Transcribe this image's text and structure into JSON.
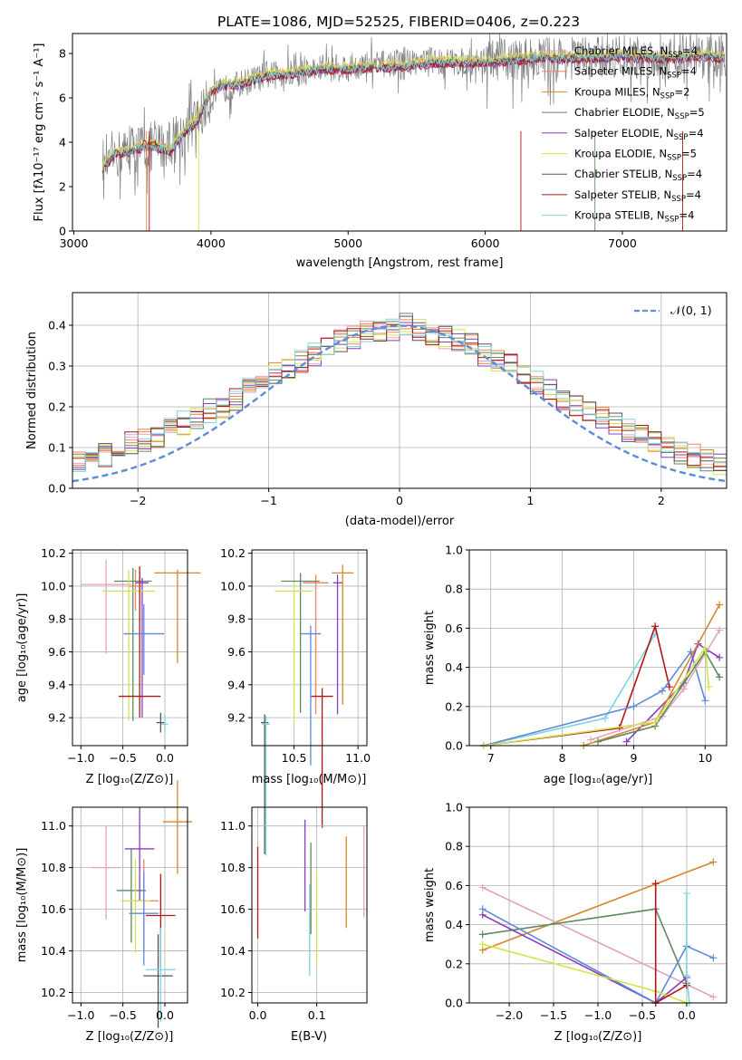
{
  "figure": {
    "title": "PLATE=1086, MJD=52525, FIBERID=0406, z=0.223"
  },
  "models": [
    {
      "key": "chabrier_miles",
      "label": "Chabrier MILES, N",
      "sup": "=4",
      "color": "#e5a3ba"
    },
    {
      "key": "salpeter_miles",
      "label": "Salpeter MILES, N",
      "sup": "=4",
      "color": "#f0825f"
    },
    {
      "key": "kroupa_miles",
      "label": "Kroupa MILES, N",
      "sup": "=2",
      "color": "#d6862c"
    },
    {
      "key": "chabrier_elodie",
      "label": "Chabrier ELODIE, N",
      "sup": "=5",
      "color": "#5f8a5f"
    },
    {
      "key": "salpeter_elodie",
      "label": "Salpeter ELODIE, N",
      "sup": "=4",
      "color": "#8a3cbf"
    },
    {
      "key": "kroupa_elodie",
      "label": "Kroupa ELODIE, N",
      "sup": "=5",
      "color": "#d3e34a"
    },
    {
      "key": "chabrier_stelib",
      "label": "Chabrier STELIB, N",
      "sup": "=4",
      "color": "#555555"
    },
    {
      "key": "salpeter_stelib",
      "label": "Salpeter STELIB, N",
      "sup": "=4",
      "color": "#b31515"
    },
    {
      "key": "kroupa_stelib",
      "label": "Kroupa STELIB, N",
      "sup": "=4",
      "color": "#7fd3df"
    }
  ],
  "legend_sub": "SSP",
  "panels": {
    "spectrum": {
      "ylabel": "Flux [fλ10⁻¹⁷ erg cm⁻² s⁻¹ A⁻¹]",
      "xlabel": "wavelength [Angstrom, rest frame]",
      "xticks": [
        "3000",
        "4000",
        "5000",
        "6000",
        "7000"
      ],
      "yticks": [
        "0",
        "2",
        "4",
        "6",
        "8"
      ]
    },
    "residuals": {
      "ylabel": "Normed distribution",
      "xlabel": "(data-model)/error",
      "legend": "𝒩(0, 1)",
      "xticks": [
        "−2",
        "−1",
        "0",
        "1",
        "2"
      ],
      "yticks": [
        "0.0",
        "0.1",
        "0.2",
        "0.3",
        "0.4"
      ]
    },
    "age_z": {
      "ylabel": "age  [log₁₀(age/yr)]",
      "xlabel": "Z [log₁₀(Z/Z⊙)]",
      "xticks": [
        "−1.0",
        "−0.5",
        "0.0"
      ],
      "yticks": [
        "9.2",
        "9.4",
        "9.6",
        "9.8",
        "10.0",
        "10.2"
      ]
    },
    "age_mass": {
      "xlabel": "mass [log₁₀(M/M⊙)]",
      "xticks": [
        "10.5",
        "11.0"
      ],
      "yticks": [
        "9.2",
        "9.4",
        "9.6",
        "9.8",
        "10.0",
        "10.2"
      ]
    },
    "mw_age": {
      "ylabel": "mass weight",
      "xlabel": "age  [log₁₀(age/yr)]",
      "xticks": [
        "7",
        "8",
        "9",
        "10"
      ],
      "yticks": [
        "0.0",
        "0.2",
        "0.4",
        "0.6",
        "0.8",
        "1.0"
      ]
    },
    "mass_z": {
      "ylabel": "mass [log₁₀(M/M⊙)]",
      "xlabel": "Z [log₁₀(Z/Z⊙)]",
      "xticks": [
        "−1.0",
        "−0.5",
        "0.0"
      ],
      "yticks": [
        "10.2",
        "10.4",
        "10.6",
        "10.8",
        "11.0"
      ]
    },
    "mass_ebv": {
      "xlabel": "E(B-V)",
      "xticks": [
        "0.0",
        "0.1"
      ],
      "yticks": [
        "10.2",
        "10.4",
        "10.6",
        "10.8",
        "11.0"
      ]
    },
    "mw_z": {
      "ylabel": "mass weight",
      "xlabel": "Z [log₁₀(Z/Z⊙)]",
      "xticks": [
        "−2.0",
        "−1.5",
        "−1.0",
        "−0.5",
        "0.0"
      ],
      "yticks": [
        "0.0",
        "0.2",
        "0.4",
        "0.6",
        "0.8",
        "1.0"
      ]
    }
  },
  "chart_data": [
    {
      "type": "line",
      "title": "PLATE=1086, MJD=52525, FIBERID=0406, z=0.223",
      "xlabel": "wavelength [Angstrom, rest frame]",
      "ylabel": "Flux [fλ10⁻¹⁷ erg cm⁻² s⁻¹ A⁻¹]",
      "xlim": [
        2990,
        7760
      ],
      "ylim": [
        0,
        8.9
      ],
      "series": [
        {
          "name": "data",
          "color": "#808080",
          "x": [
            3210,
            3300,
            3400,
            3500,
            3600,
            3700,
            3800,
            3900,
            4000,
            4100,
            4200,
            4400,
            4600,
            4800,
            5000,
            5200,
            5400,
            5600,
            5800,
            6000,
            6200,
            6400,
            6600,
            6800,
            7000,
            7200,
            7400,
            7600,
            7750
          ],
          "y": [
            2.8,
            3.4,
            3.6,
            3.8,
            3.8,
            4.0,
            4.4,
            5.0,
            6.0,
            6.4,
            6.6,
            7.0,
            7.1,
            7.3,
            7.4,
            7.5,
            7.6,
            7.7,
            7.6,
            7.7,
            7.7,
            7.8,
            7.8,
            7.8,
            7.9,
            7.8,
            7.8,
            7.9,
            7.8
          ]
        },
        {
          "name": "model",
          "color": "#7fd3df",
          "x": [
            3210,
            3300,
            3400,
            3500,
            3600,
            3700,
            3800,
            3900,
            4000,
            4100,
            4200,
            4400,
            4600,
            4800,
            5000,
            5200,
            5400,
            5600,
            5800,
            6000,
            6200,
            6400,
            6600,
            6800,
            7000,
            7200,
            7400,
            7600,
            7750
          ],
          "y": [
            2.9,
            3.5,
            3.6,
            3.8,
            3.8,
            3.6,
            4.4,
            5.0,
            6.3,
            6.6,
            6.6,
            7.0,
            7.1,
            7.3,
            7.3,
            7.4,
            7.4,
            7.6,
            7.6,
            7.6,
            7.7,
            7.8,
            7.8,
            7.8,
            7.9,
            7.8,
            7.8,
            7.9,
            7.8
          ]
        }
      ]
    },
    {
      "type": "line",
      "xlabel": "(data-model)/error",
      "ylabel": "Normed distribution",
      "xlim": [
        -2.5,
        2.5
      ],
      "ylim": [
        0,
        0.48
      ],
      "series": [
        {
          "name": "𝒩(0, 1)",
          "x": [
            -2.5,
            -2,
            -1.5,
            -1,
            -0.5,
            0,
            0.5,
            1,
            1.5,
            2,
            2.5
          ],
          "y": [
            0.018,
            0.054,
            0.13,
            0.242,
            0.352,
            0.399,
            0.352,
            0.242,
            0.13,
            0.054,
            0.018
          ]
        }
      ],
      "histogram_bin_width": 0.1,
      "histogram_heights": [
        0.02,
        0.02,
        0.03,
        0.04,
        0.05,
        0.05,
        0.06,
        0.07,
        0.08,
        0.1,
        0.11,
        0.12,
        0.13,
        0.15,
        0.16,
        0.17,
        0.19,
        0.2,
        0.22,
        0.24,
        0.26,
        0.28,
        0.3,
        0.31,
        0.33,
        0.35,
        0.36,
        0.37,
        0.38,
        0.39,
        0.39,
        0.4,
        0.39,
        0.38,
        0.37,
        0.36,
        0.35,
        0.33,
        0.31,
        0.3,
        0.28,
        0.26,
        0.24,
        0.22,
        0.2,
        0.19,
        0.17,
        0.16,
        0.14,
        0.13,
        0.12,
        0.1,
        0.09,
        0.08,
        0.07,
        0.06,
        0.05,
        0.05,
        0.04,
        0.03,
        0.03,
        0.02
      ]
    },
    {
      "type": "scatter",
      "xlabel": "Z [log₁₀(Z/Z⊙)]",
      "ylabel": "age  [log₁₀(age/yr)]",
      "xlim": [
        -1.1,
        0.27
      ],
      "ylim": [
        9.03,
        10.22
      ],
      "points": [
        {
          "model": "chabrier_miles",
          "x": -0.7,
          "xerr": 0.6,
          "y": 10.01,
          "yerr": [
            0.42,
            0.15
          ]
        },
        {
          "model": "salpeter_miles",
          "x": -0.35,
          "xerr": 0.15,
          "y": 10.0,
          "yerr": [
            0.15,
            0.1
          ]
        },
        {
          "model": "kroupa_miles",
          "x": 0.15,
          "xerr": 0.55,
          "y": 10.08,
          "yerr": [
            0.55,
            0.02
          ]
        },
        {
          "model": "chabrier_elodie",
          "x": -0.38,
          "xerr": 0.45,
          "y": 10.03,
          "yerr": [
            0.85,
            0.08
          ]
        },
        {
          "model": "salpeter_elodie",
          "x": -0.27,
          "xerr": 0.15,
          "y": 10.02,
          "yerr": [
            0.82,
            0.03
          ]
        },
        {
          "model": "kroupa_elodie",
          "x": -0.43,
          "xerr": 0.63,
          "y": 9.97,
          "yerr": [
            0.79,
            0.13
          ]
        },
        {
          "model": "chabrier_stelib",
          "x": -0.05,
          "xerr": 0.1,
          "y": 9.17,
          "yerr": [
            0.06,
            0.06
          ]
        },
        {
          "model": "salpeter_stelib",
          "x": -0.3,
          "xerr": 0.5,
          "y": 9.33,
          "yerr": [
            0.13,
            0.79
          ]
        },
        {
          "model": "kroupa_stelib",
          "x": 0.0,
          "xerr": 0.08,
          "y": 9.16,
          "yerr": [
            0.05,
            0.06
          ]
        },
        {
          "model": "blue_extra",
          "x": -0.25,
          "xerr": 0.48,
          "y": 9.71,
          "yerr": [
            0.25,
            0.18
          ]
        }
      ]
    },
    {
      "type": "scatter",
      "xlabel": "mass [log₁₀(M/M⊙)]",
      "xlim": [
        10.17,
        11.07
      ],
      "ylim": [
        9.03,
        10.22
      ],
      "points": [
        {
          "model": "salpeter_miles",
          "x": 10.67,
          "xerr": 0.2,
          "y": 10.02
        },
        {
          "model": "kroupa_miles",
          "x": 10.88,
          "xerr": 0.17,
          "y": 10.08
        },
        {
          "model": "chabrier_elodie",
          "x": 10.55,
          "xerr": 0.3,
          "y": 10.03
        },
        {
          "model": "salpeter_elodie",
          "x": 10.84,
          "xerr": 0.07,
          "y": 10.02
        },
        {
          "model": "kroupa_elodie",
          "x": 10.5,
          "xerr": 0.3,
          "y": 9.97
        },
        {
          "model": "chabrier_stelib",
          "x": 10.27,
          "xerr": 0.06,
          "y": 9.17
        },
        {
          "model": "salpeter_stelib",
          "x": 10.72,
          "xerr": 0.17,
          "y": 9.33
        },
        {
          "model": "kroupa_stelib",
          "x": 10.28,
          "xerr": 0.06,
          "y": 9.16
        },
        {
          "model": "blue_extra",
          "x": 10.63,
          "xerr": 0.16,
          "y": 9.71
        }
      ]
    },
    {
      "type": "line",
      "xlabel": "age  [log₁₀(age/yr)]",
      "ylabel": "mass weight",
      "xlim": [
        6.7,
        10.3
      ],
      "ylim": [
        0,
        1.0
      ],
      "series": [
        {
          "model": "kroupa_stelib",
          "x": [
            6.9,
            8.6,
            9.3
          ],
          "y": [
            0.0,
            0.14,
            0.57
          ]
        },
        {
          "model": "salpeter_stelib",
          "x": [
            6.9,
            8.8,
            9.3,
            9.5
          ],
          "y": [
            0.0,
            0.09,
            0.61,
            0.3
          ]
        },
        {
          "model": "blue_extra",
          "x": [
            6.9,
            9.0,
            9.4,
            9.8,
            10.0
          ],
          "y": [
            0.0,
            0.2,
            0.28,
            0.48,
            0.23
          ]
        },
        {
          "model": "salpeter_elodie",
          "x": [
            8.9,
            9.7,
            9.9,
            10.2
          ],
          "y": [
            0.02,
            0.32,
            0.52,
            0.45
          ]
        },
        {
          "model": "kroupa_miles",
          "x": [
            8.3,
            9.3,
            10.2
          ],
          "y": [
            0.0,
            0.12,
            0.72
          ]
        },
        {
          "model": "chabrier_miles",
          "x": [
            8.4,
            9.4,
            9.7,
            10.2
          ],
          "y": [
            0.03,
            0.15,
            0.29,
            0.59
          ]
        },
        {
          "model": "chabrier_elodie",
          "x": [
            8.5,
            9.3,
            10.0,
            10.2
          ],
          "y": [
            0.02,
            0.1,
            0.48,
            0.35
          ]
        },
        {
          "model": "kroupa_elodie",
          "x": [
            6.9,
            9.3,
            10.0,
            10.05
          ],
          "y": [
            0.0,
            0.12,
            0.5,
            0.3
          ]
        }
      ]
    },
    {
      "type": "scatter",
      "xlabel": "Z [log₁₀(Z/Z⊙)]",
      "ylabel": "mass [log₁₀(M/M⊙)]",
      "xlim": [
        -1.1,
        0.27
      ],
      "ylim": [
        10.15,
        11.09
      ],
      "points": [
        {
          "model": "chabrier_miles",
          "x": -0.7,
          "y": 10.8
        },
        {
          "model": "salpeter_miles",
          "x": -0.25,
          "y": 10.64
        },
        {
          "model": "kroupa_miles",
          "x": 0.15,
          "y": 11.02
        },
        {
          "model": "chabrier_elodie",
          "x": -0.4,
          "y": 10.69
        },
        {
          "model": "salpeter_elodie",
          "x": -0.3,
          "y": 10.89
        },
        {
          "model": "kroupa_elodie",
          "x": -0.35,
          "y": 10.64
        },
        {
          "model": "chabrier_stelib",
          "x": -0.08,
          "y": 10.28
        },
        {
          "model": "salpeter_stelib",
          "x": -0.05,
          "y": 10.57
        },
        {
          "model": "kroupa_stelib",
          "x": -0.05,
          "y": 10.31
        },
        {
          "model": "blue_extra",
          "x": -0.25,
          "y": 10.58
        }
      ]
    },
    {
      "type": "scatter",
      "xlabel": "E(B-V)",
      "xlim": [
        -0.01,
        0.185
      ],
      "ylim": [
        10.15,
        11.09
      ],
      "points": [
        {
          "model": "salpeter_stelib",
          "x": 0.0,
          "y": 10.68
        },
        {
          "model": "salpeter_elodie",
          "x": 0.08,
          "y": 10.81
        },
        {
          "model": "chabrier_elodie",
          "x": 0.09,
          "y": 10.7
        },
        {
          "model": "kroupa_stelib",
          "x": 0.088,
          "y": 10.5
        },
        {
          "model": "kroupa_elodie",
          "x": 0.1,
          "y": 10.56
        },
        {
          "model": "kroupa_miles",
          "x": 0.15,
          "y": 10.73
        },
        {
          "model": "chabrier_miles",
          "x": 0.18,
          "y": 10.78
        }
      ]
    },
    {
      "type": "line",
      "xlabel": "Z [log₁₀(Z/Z⊙)]",
      "ylabel": "mass weight",
      "xlim": [
        -2.45,
        0.45
      ],
      "ylim": [
        0,
        1.0
      ],
      "series": [
        {
          "model": "kroupa_miles",
          "x": [
            -2.3,
            0.3
          ],
          "y": [
            0.27,
            0.72
          ]
        },
        {
          "model": "chabrier_miles",
          "x": [
            -2.3,
            0.3
          ],
          "y": [
            0.59,
            0.03
          ]
        },
        {
          "model": "chabrier_elodie",
          "x": [
            -2.3,
            -0.35,
            0.0
          ],
          "y": [
            0.35,
            0.48,
            0.1
          ]
        },
        {
          "model": "salpeter_elodie",
          "x": [
            -2.3,
            -0.35,
            0.0
          ],
          "y": [
            0.45,
            0.0,
            0.13
          ]
        },
        {
          "model": "blue_extra",
          "x": [
            -2.3,
            -0.35,
            0.0,
            0.3
          ],
          "y": [
            0.48,
            0.0,
            0.29,
            0.23
          ]
        },
        {
          "model": "kroupa_elodie",
          "x": [
            -2.3,
            -0.35,
            0.0
          ],
          "y": [
            0.3,
            0.06,
            0.0
          ]
        },
        {
          "model": "salpeter_stelib",
          "x": [
            -0.35,
            -0.35,
            0.0
          ],
          "y": [
            0.61,
            0.0,
            0.09
          ]
        },
        {
          "model": "kroupa_stelib",
          "x": [
            0.0,
            0.0,
            0.03
          ],
          "y": [
            0.56,
            0.14,
            0.0
          ]
        }
      ]
    }
  ]
}
